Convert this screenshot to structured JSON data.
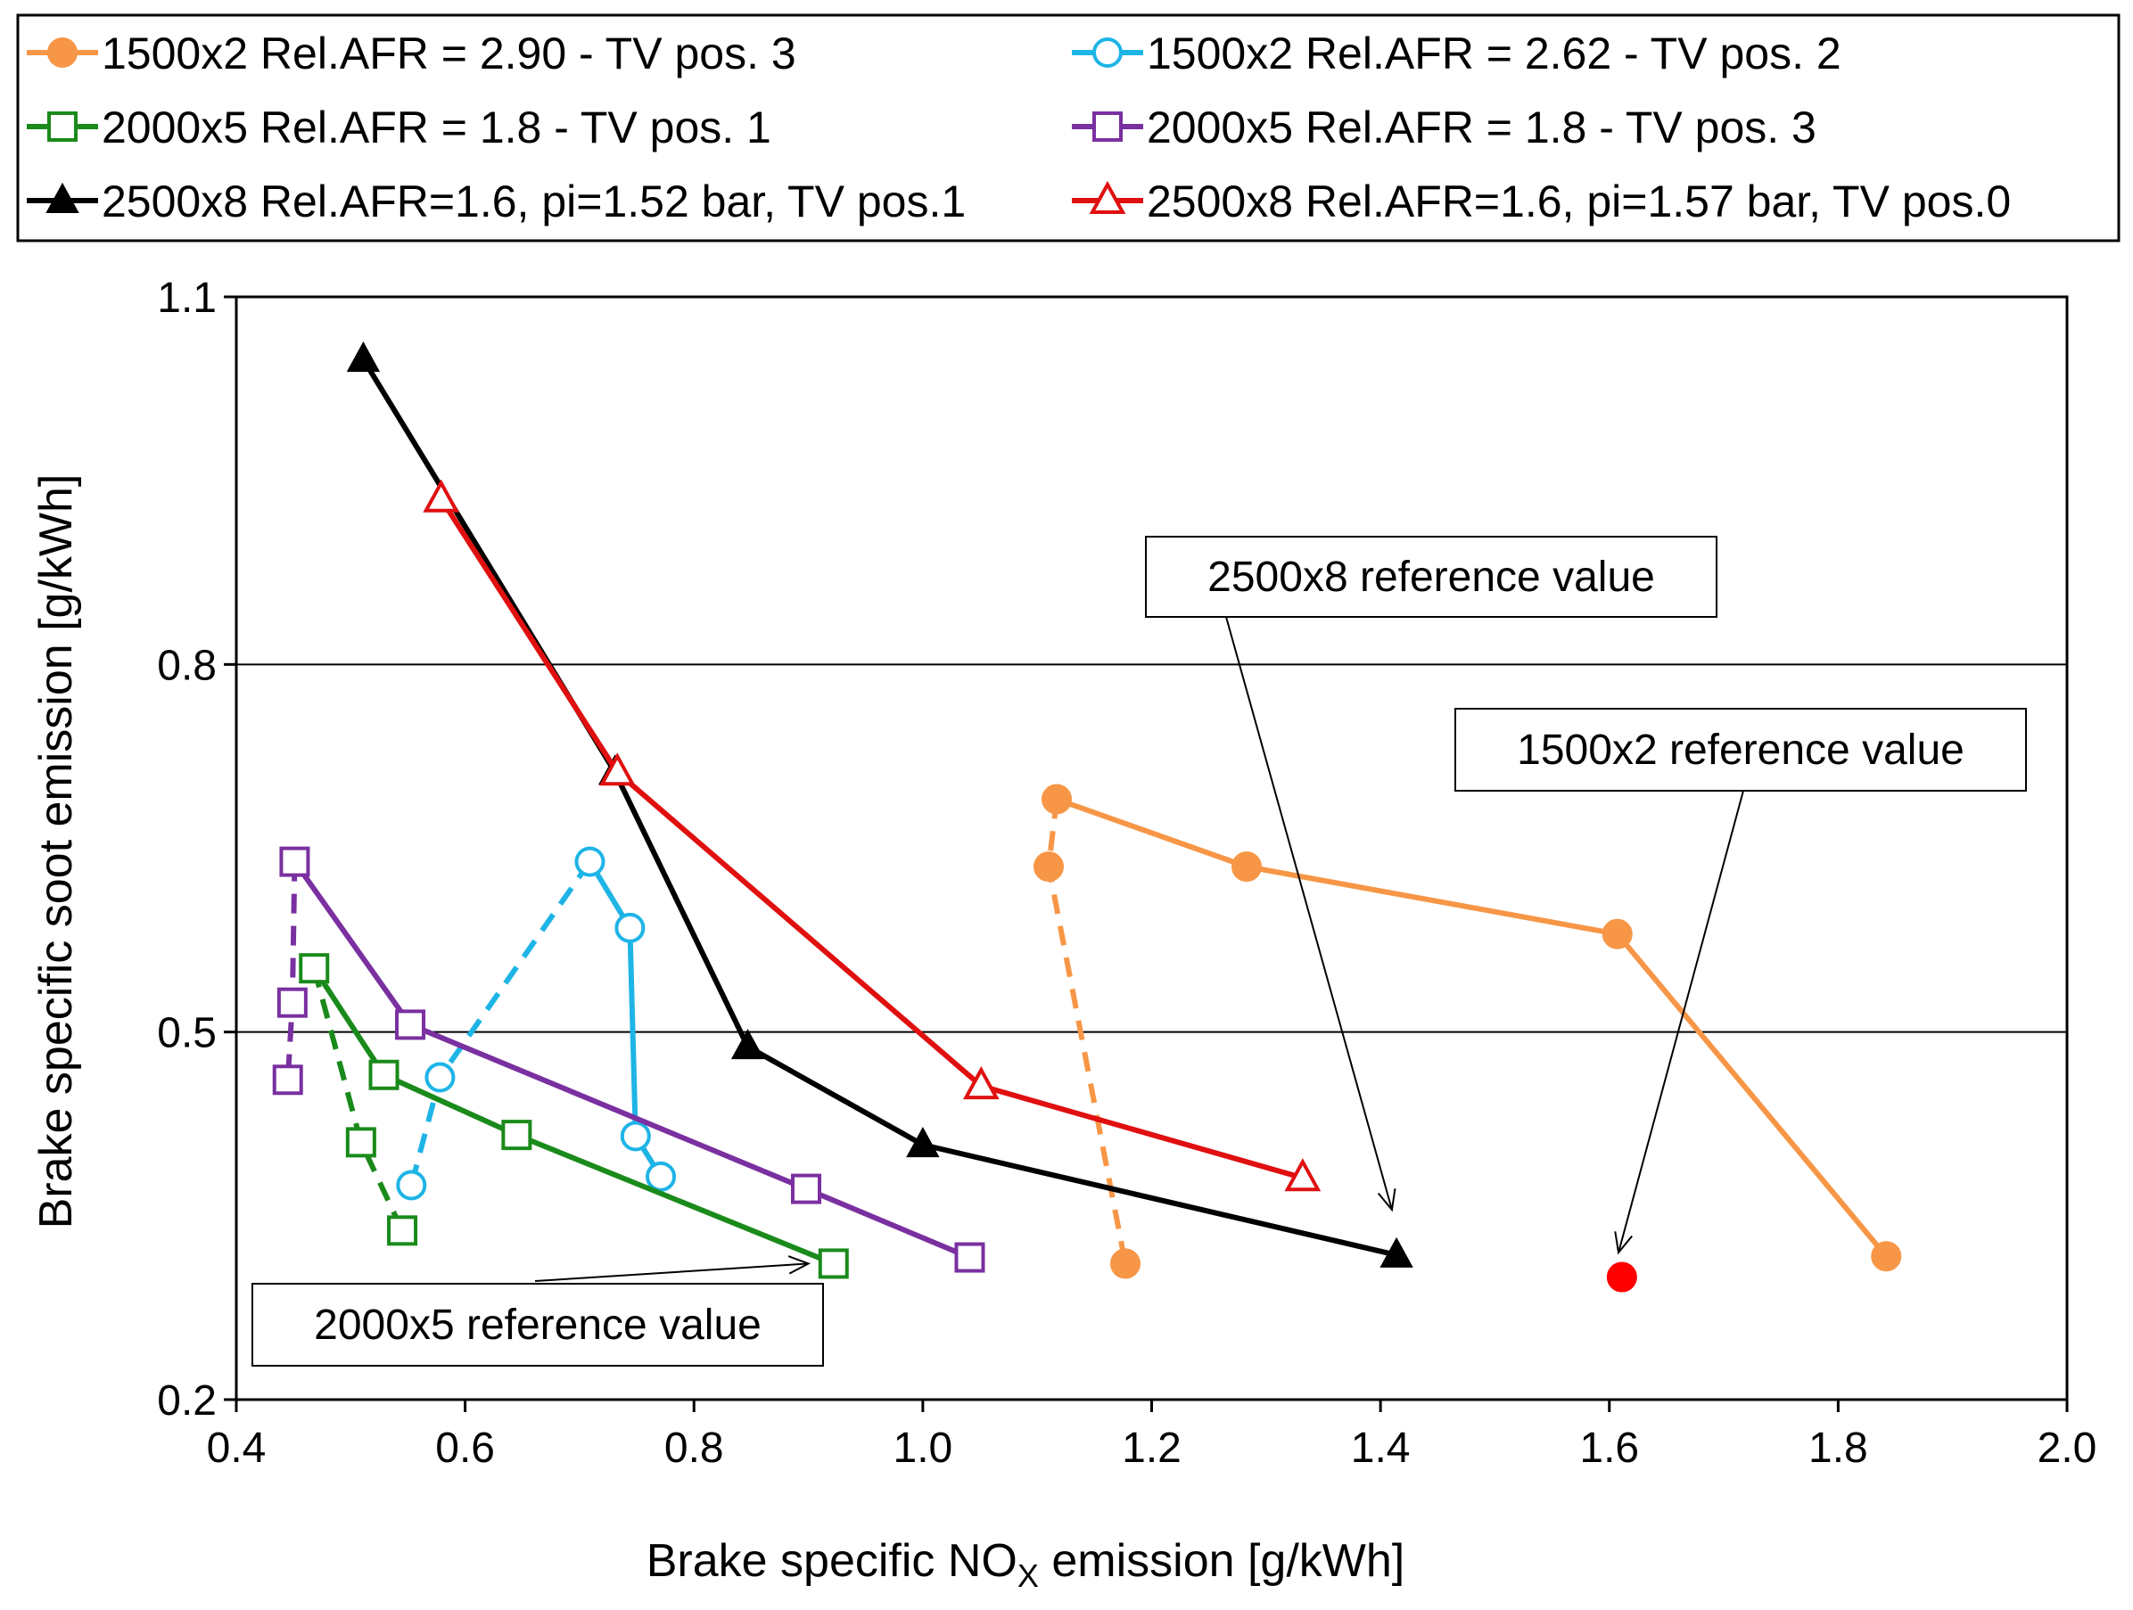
{
  "chart_data": {
    "type": "scatter",
    "xlabel": "Brake specific NO",
    "xlabel_subscript": "X",
    "xlabel_suffix": " emission [g/kWh]",
    "ylabel": "Brake specific soot emission [g/kWh]",
    "xlim": [
      0.4,
      2.0
    ],
    "ylim": [
      0.2,
      1.1
    ],
    "xticks": [
      "0.4",
      "0.6",
      "0.8",
      "1.0",
      "1.2",
      "1.4",
      "1.6",
      "1.8",
      "2.0"
    ],
    "yticks": [
      "0.2",
      "0.5",
      "0.8",
      "1.1"
    ],
    "ytick_values": [
      0.2,
      0.5,
      0.8,
      1.1
    ],
    "grid": "horizontal",
    "legend_position": "top",
    "series": [
      {
        "name": "1500x2 Rel.AFR = 2.90 - TV pos. 3",
        "color": "#F79646",
        "marker": "circle-filled",
        "legend_column": 0,
        "segments": [
          {
            "style": "solid",
            "points": [
              [
                1.117,
                0.69
              ],
              [
                1.283,
                0.635
              ],
              [
                1.607,
                0.58
              ],
              [
                1.842,
                0.317
              ]
            ]
          },
          {
            "style": "dashed",
            "points": [
              [
                1.117,
                0.69
              ],
              [
                1.11,
                0.635
              ],
              [
                1.177,
                0.311
              ]
            ]
          }
        ]
      },
      {
        "name": "1500x2 Rel.AFR = 2.62 - TV pos. 2",
        "color": "#1EB4E6",
        "marker": "circle-open",
        "legend_column": 1,
        "segments": [
          {
            "style": "solid",
            "points": [
              [
                0.709,
                0.639
              ],
              [
                0.744,
                0.585
              ],
              [
                0.749,
                0.415
              ],
              [
                0.771,
                0.382
              ]
            ]
          },
          {
            "style": "dashed",
            "points": [
              [
                0.709,
                0.639
              ],
              [
                0.578,
                0.463
              ],
              [
                0.553,
                0.375
              ]
            ]
          }
        ]
      },
      {
        "name": "2000x5 Rel.AFR = 1.8 - TV pos. 1",
        "color": "#1A8A1A",
        "marker": "square-open",
        "legend_column": 0,
        "segments": [
          {
            "style": "solid",
            "points": [
              [
                0.468,
                0.552
              ],
              [
                0.529,
                0.465
              ],
              [
                0.645,
                0.416
              ],
              [
                0.922,
                0.311
              ]
            ]
          },
          {
            "style": "dashed",
            "points": [
              [
                0.468,
                0.552
              ],
              [
                0.509,
                0.41
              ],
              [
                0.545,
                0.338
              ]
            ]
          }
        ]
      },
      {
        "name": "2000x5 Rel.AFR = 1.8 - TV pos. 3",
        "color": "#7A30A0",
        "marker": "square-open",
        "legend_column": 1,
        "segments": [
          {
            "style": "solid",
            "points": [
              [
                0.451,
                0.639
              ],
              [
                0.552,
                0.506
              ],
              [
                0.898,
                0.372
              ],
              [
                1.041,
                0.316
              ]
            ]
          },
          {
            "style": "dashed",
            "points": [
              [
                0.451,
                0.639
              ],
              [
                0.449,
                0.524
              ],
              [
                0.445,
                0.461
              ]
            ]
          }
        ]
      },
      {
        "name": "2500x8 Rel.AFR=1.6, pi=1.52 bar, TV pos.1",
        "color": "#000000",
        "marker": "triangle-filled",
        "legend_column": 0,
        "segments": [
          {
            "style": "solid",
            "points": [
              [
                0.511,
                1.049
              ],
              [
                0.731,
                0.712
              ],
              [
                0.847,
                0.488
              ],
              [
                1.0,
                0.408
              ],
              [
                1.414,
                0.318
              ]
            ]
          }
        ]
      },
      {
        "name": "2500x8 Rel.AFR=1.6, pi=1.57 bar, TV pos.0",
        "color": "#E01010",
        "marker": "triangle-open",
        "legend_column": 1,
        "segments": [
          {
            "style": "solid",
            "points": [
              [
                0.579,
                0.935
              ],
              [
                0.733,
                0.712
              ],
              [
                1.051,
                0.456
              ],
              [
                1.332,
                0.381
              ]
            ]
          }
        ]
      }
    ],
    "reference_points": [
      {
        "name": "1500x2 reference",
        "x": 1.611,
        "y": 0.3,
        "color": "#FF0000",
        "marker": "circle-filled"
      }
    ],
    "annotations": [
      {
        "text": "2500x8 reference value",
        "target": [
          1.41,
          0.355
        ]
      },
      {
        "text": "1500x2 reference value",
        "target": [
          1.608,
          0.32
        ]
      },
      {
        "text": "2000x5 reference value",
        "target": [
          0.9,
          0.311
        ]
      }
    ]
  }
}
